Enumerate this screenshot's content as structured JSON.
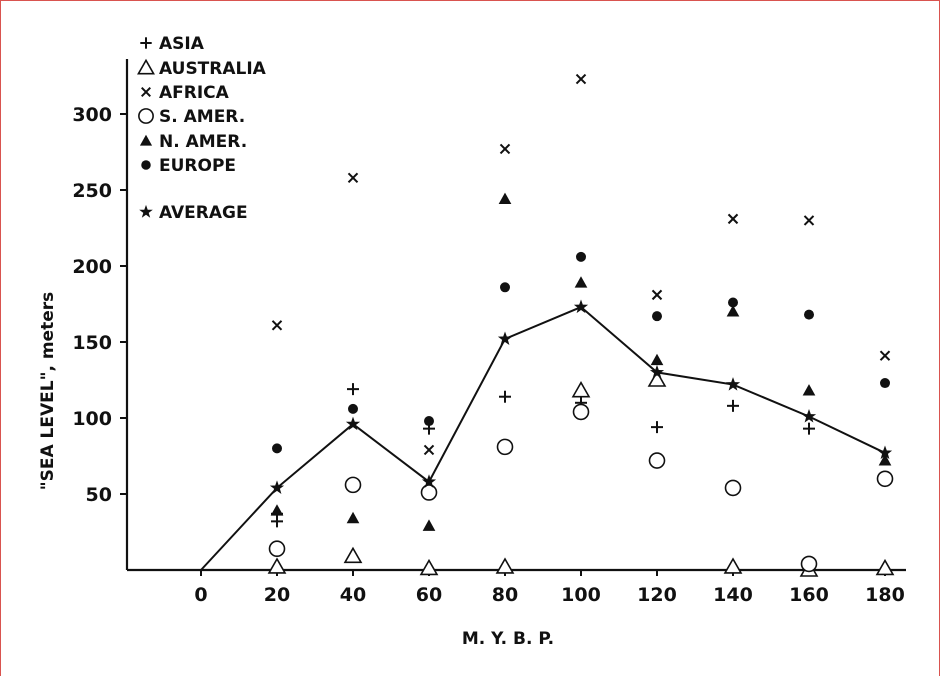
{
  "chart_data": {
    "type": "scatter",
    "xlabel": "M. Y. B. P.",
    "ylabel": "\"SEA LEVEL\", meters",
    "x_ticks": [
      "0",
      "20",
      "40",
      "60",
      "80",
      "100",
      "120",
      "140",
      "160",
      "180"
    ],
    "y_ticks": [
      "50",
      "100",
      "150",
      "200",
      "250",
      "300"
    ],
    "xlim": [
      -15,
      185
    ],
    "ylim": [
      0,
      330
    ],
    "grid": false,
    "legend_position": "top-left",
    "series": [
      {
        "name": "ASIA",
        "marker": "plus",
        "points": [
          [
            20,
            32
          ],
          [
            20,
            37
          ],
          [
            40,
            119
          ],
          [
            60,
            93
          ],
          [
            80,
            114
          ],
          [
            100,
            110
          ],
          [
            120,
            94
          ],
          [
            140,
            108
          ],
          [
            160,
            93
          ]
        ]
      },
      {
        "name": "AUSTRALIA",
        "marker": "triangle-open",
        "points": [
          [
            20,
            2
          ],
          [
            40,
            9
          ],
          [
            60,
            1
          ],
          [
            80,
            2
          ],
          [
            100,
            118
          ],
          [
            120,
            125
          ],
          [
            140,
            2
          ],
          [
            160,
            0
          ],
          [
            180,
            1
          ]
        ]
      },
      {
        "name": "AFRICA",
        "marker": "x",
        "points": [
          [
            20,
            161
          ],
          [
            40,
            258
          ],
          [
            60,
            79
          ],
          [
            80,
            277
          ],
          [
            100,
            323
          ],
          [
            120,
            181
          ],
          [
            140,
            231
          ],
          [
            160,
            230
          ],
          [
            180,
            141
          ]
        ]
      },
      {
        "name": "S. AMER.",
        "marker": "circle-open",
        "points": [
          [
            20,
            14
          ],
          [
            40,
            56
          ],
          [
            60,
            51
          ],
          [
            80,
            81
          ],
          [
            100,
            104
          ],
          [
            120,
            72
          ],
          [
            140,
            54
          ],
          [
            160,
            4
          ],
          [
            180,
            60
          ]
        ]
      },
      {
        "name": "N. AMER.",
        "marker": "triangle-filled",
        "points": [
          [
            20,
            39
          ],
          [
            40,
            34
          ],
          [
            60,
            29
          ],
          [
            80,
            244
          ],
          [
            100,
            189
          ],
          [
            120,
            138
          ],
          [
            140,
            170
          ],
          [
            160,
            118
          ],
          [
            180,
            72
          ]
        ]
      },
      {
        "name": "EUROPE",
        "marker": "circle-filled",
        "points": [
          [
            20,
            80
          ],
          [
            40,
            106
          ],
          [
            60,
            98
          ],
          [
            80,
            186
          ],
          [
            100,
            206
          ],
          [
            120,
            167
          ],
          [
            140,
            176
          ],
          [
            160,
            168
          ],
          [
            180,
            123
          ]
        ]
      },
      {
        "name": "AVERAGE",
        "marker": "star",
        "line": true,
        "points": [
          [
            0,
            0
          ],
          [
            20,
            54
          ],
          [
            40,
            96
          ],
          [
            60,
            58
          ],
          [
            80,
            152
          ],
          [
            100,
            173
          ],
          [
            120,
            130
          ],
          [
            140,
            122
          ],
          [
            160,
            101
          ],
          [
            180,
            77
          ]
        ]
      }
    ]
  }
}
